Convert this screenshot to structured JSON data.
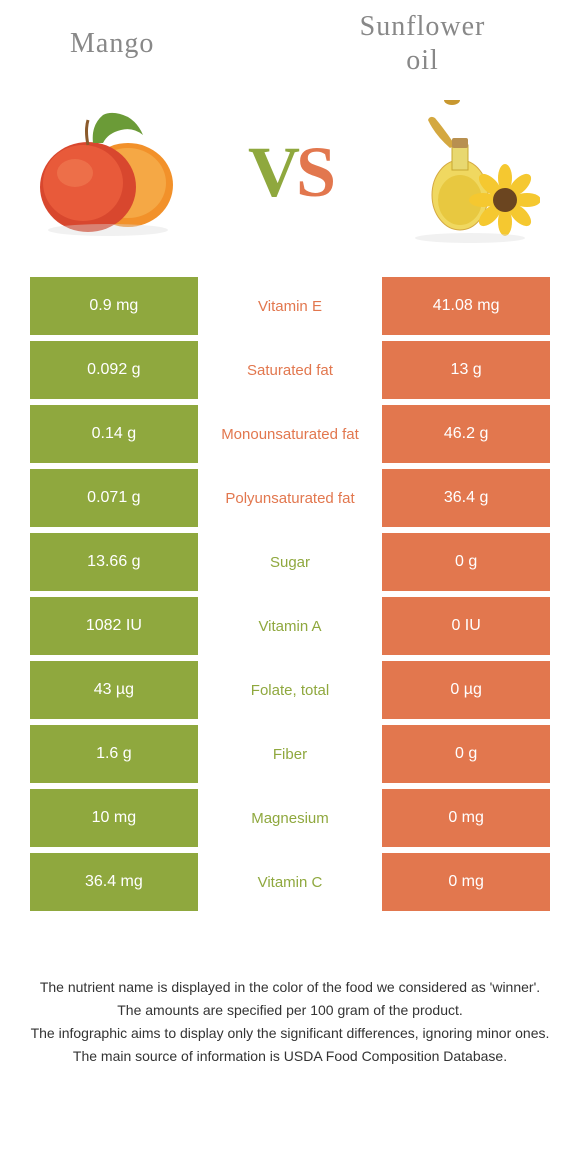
{
  "header": {
    "left_title": "Mango",
    "right_title_line1": "Sunflower",
    "right_title_line2": "oil",
    "vs_text": "VS"
  },
  "colors": {
    "green": "#8fa83e",
    "orange": "#e2774e",
    "title_gray": "#888888",
    "text_dark": "#333333",
    "white": "#ffffff"
  },
  "comparison": {
    "rows": [
      {
        "nutrient": "Vitamin E",
        "left_value": "0.9 mg",
        "right_value": "41.08 mg",
        "winner": "right"
      },
      {
        "nutrient": "Saturated fat",
        "left_value": "0.092 g",
        "right_value": "13 g",
        "winner": "right"
      },
      {
        "nutrient": "Monounsaturated fat",
        "left_value": "0.14 g",
        "right_value": "46.2 g",
        "winner": "right"
      },
      {
        "nutrient": "Polyunsaturated fat",
        "left_value": "0.071 g",
        "right_value": "36.4 g",
        "winner": "right"
      },
      {
        "nutrient": "Sugar",
        "left_value": "13.66 g",
        "right_value": "0 g",
        "winner": "left"
      },
      {
        "nutrient": "Vitamin A",
        "left_value": "1082 IU",
        "right_value": "0 IU",
        "winner": "left"
      },
      {
        "nutrient": "Folate, total",
        "left_value": "43 µg",
        "right_value": "0 µg",
        "winner": "left"
      },
      {
        "nutrient": "Fiber",
        "left_value": "1.6 g",
        "right_value": "0 g",
        "winner": "left"
      },
      {
        "nutrient": "Magnesium",
        "left_value": "10 mg",
        "right_value": "0 mg",
        "winner": "left"
      },
      {
        "nutrient": "Vitamin C",
        "left_value": "36.4 mg",
        "right_value": "0 mg",
        "winner": "left"
      }
    ]
  },
  "footer": {
    "line1": "The nutrient name is displayed in the color of the food we considered as 'winner'.",
    "line2": "The amounts are specified per 100 gram of the product.",
    "line3": "The infographic aims to display only the significant differences, ignoring minor ones.",
    "line4": "The main source of information is USDA Food Composition Database."
  }
}
